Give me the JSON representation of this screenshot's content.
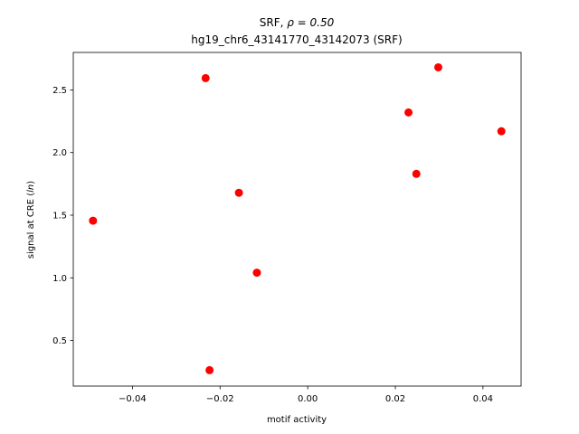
{
  "chart_data": {
    "type": "scatter",
    "title_line1_prefix": "SRF, ",
    "title_line1_rho": "ρ = 0.50",
    "title_line2": "hg19_chr6_43141770_43142073 (SRF)",
    "xlabel": "motif activity",
    "ylabel_prefix": "signal at CRE (",
    "ylabel_italic": "ln",
    "ylabel_suffix": ")",
    "xlim": [
      -0.0535,
      0.0487
    ],
    "ylim": [
      0.136,
      2.799
    ],
    "xticks": [
      -0.04,
      -0.02,
      0.0,
      0.02,
      0.04
    ],
    "xtick_labels": [
      "−0.04",
      "−0.02",
      "0.00",
      "0.02",
      "0.04"
    ],
    "yticks": [
      0.5,
      1.0,
      1.5,
      2.0,
      2.5
    ],
    "ytick_labels": [
      "0.5",
      "1.0",
      "1.5",
      "2.0",
      "2.5"
    ],
    "grid": false,
    "marker_color": "#ff0000",
    "points": [
      {
        "x": -0.049,
        "y": 1.456
      },
      {
        "x": -0.0233,
        "y": 2.594
      },
      {
        "x": -0.0224,
        "y": 0.263
      },
      {
        "x": -0.0157,
        "y": 1.679
      },
      {
        "x": -0.0116,
        "y": 1.041
      },
      {
        "x": 0.023,
        "y": 2.32
      },
      {
        "x": 0.0248,
        "y": 1.83
      },
      {
        "x": 0.0298,
        "y": 2.68
      },
      {
        "x": 0.0442,
        "y": 2.17
      }
    ]
  }
}
